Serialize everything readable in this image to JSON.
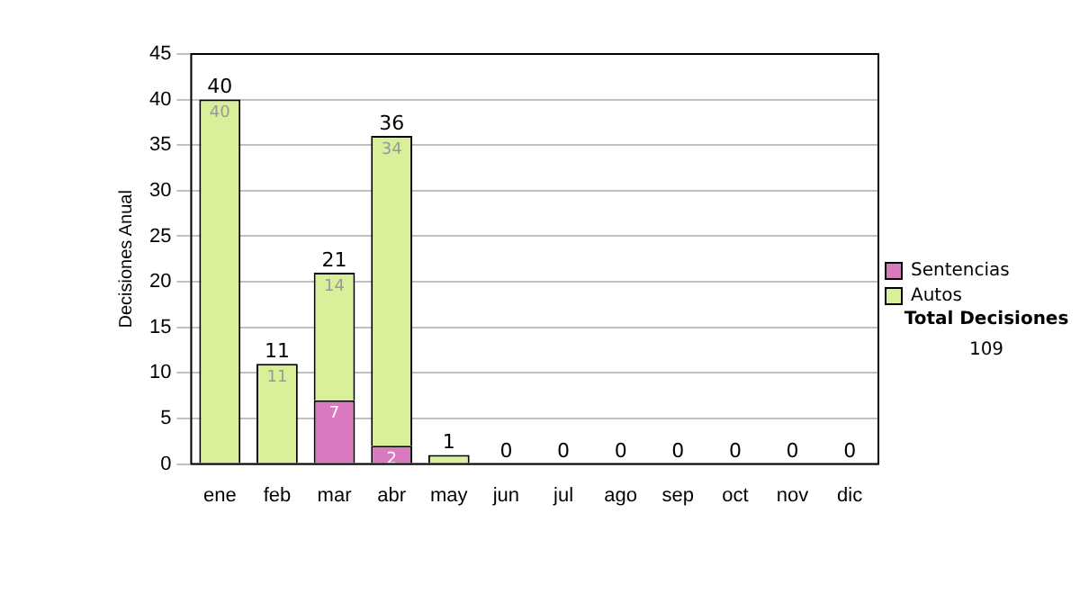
{
  "chart_data": {
    "type": "bar",
    "stacked": true,
    "ylabel": "Decisiones Anual",
    "categories": [
      "ene",
      "feb",
      "mar",
      "abr",
      "may",
      "jun",
      "jul",
      "ago",
      "sep",
      "oct",
      "nov",
      "dic"
    ],
    "series": [
      {
        "name": "Sentencias",
        "color": "#d97ac0",
        "values": [
          0,
          0,
          7,
          2,
          0,
          0,
          0,
          0,
          0,
          0,
          0,
          0
        ],
        "value_labels": [
          null,
          null,
          "7",
          "2",
          null,
          null,
          null,
          null,
          null,
          null,
          null,
          null
        ]
      },
      {
        "name": "Autos",
        "color": "#d9ef99",
        "values": [
          40,
          11,
          14,
          34,
          1,
          0,
          0,
          0,
          0,
          0,
          0,
          0
        ],
        "value_labels": [
          "40",
          "11",
          "14",
          "34",
          null,
          null,
          null,
          null,
          null,
          null,
          null,
          null
        ]
      }
    ],
    "totals": [
      "40",
      "11",
      "21",
      "36",
      "1",
      "0",
      "0",
      "0",
      "0",
      "0",
      "0",
      "0"
    ],
    "ylim": [
      0,
      45
    ],
    "yticks": [
      0,
      5,
      10,
      15,
      20,
      25,
      30,
      35,
      40,
      45
    ],
    "grid": "y",
    "legend": "right",
    "annotations": [
      "Total Decisiones",
      "109"
    ]
  }
}
